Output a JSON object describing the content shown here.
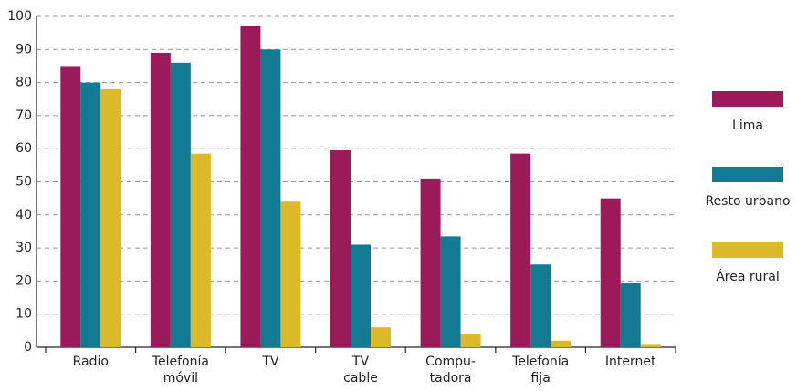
{
  "chart_data": {
    "type": "bar",
    "categories": [
      [
        "Radio"
      ],
      [
        "Telefonía",
        "móvil"
      ],
      [
        "TV"
      ],
      [
        "TV",
        "cable"
      ],
      [
        "Compu-",
        "tadora"
      ],
      [
        "Telefonía",
        "fija"
      ],
      [
        "Internet"
      ]
    ],
    "series": [
      {
        "name": "Lima",
        "color": "#9b1b5a",
        "values": [
          85,
          89,
          97,
          59.5,
          51,
          58.5,
          45
        ]
      },
      {
        "name": "Resto urbano",
        "color": "#137a93",
        "values": [
          80,
          86,
          90,
          31,
          33.5,
          25,
          19.5
        ]
      },
      {
        "name": "Área rural",
        "color": "#dcb928",
        "values": [
          78,
          58.5,
          44,
          6,
          4,
          2,
          1
        ]
      }
    ],
    "ylim": [
      0,
      100
    ],
    "yticks": [
      0,
      10,
      20,
      30,
      40,
      50,
      60,
      70,
      80,
      90,
      100
    ],
    "grid": true,
    "legend": "right"
  }
}
